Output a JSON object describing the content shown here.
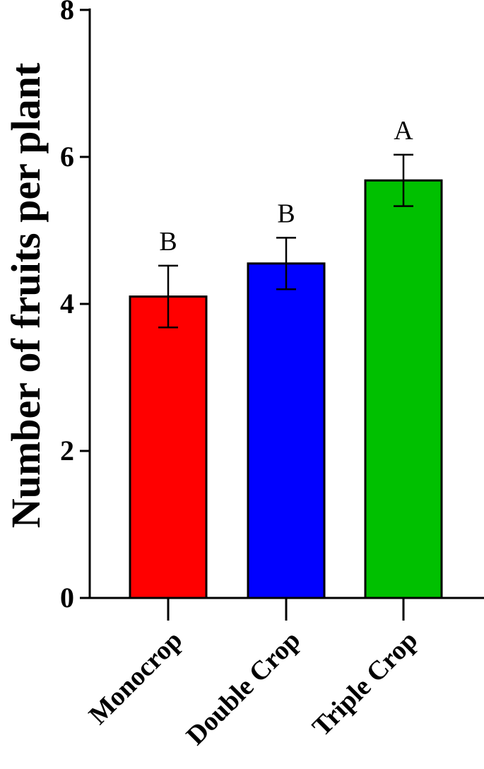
{
  "chart_data": {
    "type": "bar",
    "title": "",
    "xlabel": "",
    "ylabel": "Number of fruits per plant",
    "ylim": [
      0,
      8
    ],
    "yticks": [
      0,
      2,
      4,
      6,
      8
    ],
    "grid": false,
    "legend": "none",
    "categories": [
      "Monocrop",
      "Double Crop",
      "Triple Crop"
    ],
    "values": [
      4.1,
      4.55,
      5.68
    ],
    "error": [
      0.42,
      0.35,
      0.35
    ],
    "significance": [
      "B",
      "B",
      "A"
    ],
    "colors": [
      "#ff0000",
      "#0000ff",
      "#00c000"
    ]
  }
}
